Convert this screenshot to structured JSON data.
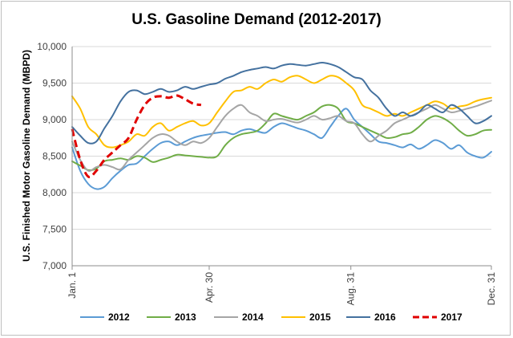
{
  "chart_data": {
    "type": "line",
    "title": "U.S. Gasoline Demand (2012-2017)",
    "ylabel": "U.S. Finished Motor Gasoline Demand (MBPD)",
    "xlabel": "",
    "ylim": [
      7000,
      10000
    ],
    "yticks": [
      "7,000",
      "7,500",
      "8,000",
      "8,500",
      "9,000",
      "9,500",
      "10,000"
    ],
    "x_tick_labels": [
      "Jan. 1",
      "Apr. 30",
      "Aug. 31",
      "Dec. 31"
    ],
    "x_tick_days": [
      0,
      119,
      242,
      364
    ],
    "grid": "horizontal",
    "legend_position": "bottom",
    "series": [
      {
        "name": "2012",
        "color": "#5b9bd5",
        "dash": false,
        "days": [
          0,
          7,
          14,
          21,
          28,
          35,
          42,
          49,
          56,
          63,
          70,
          77,
          84,
          91,
          98,
          105,
          112,
          119,
          126,
          133,
          140,
          147,
          154,
          161,
          168,
          175,
          182,
          189,
          196,
          203,
          210,
          217,
          224,
          231,
          238,
          245,
          252,
          259,
          266,
          273,
          280,
          287,
          294,
          301,
          308,
          315,
          322,
          329,
          336,
          343,
          350,
          357,
          364
        ],
        "values": [
          8620,
          8300,
          8120,
          8050,
          8080,
          8200,
          8300,
          8380,
          8400,
          8500,
          8600,
          8680,
          8700,
          8650,
          8700,
          8750,
          8780,
          8800,
          8820,
          8830,
          8800,
          8850,
          8870,
          8840,
          8820,
          8900,
          8950,
          8920,
          8880,
          8850,
          8800,
          8750,
          8900,
          9050,
          9150,
          9000,
          8900,
          8800,
          8700,
          8680,
          8650,
          8620,
          8660,
          8600,
          8650,
          8720,
          8680,
          8600,
          8650,
          8550,
          8500,
          8480,
          8560
        ]
      },
      {
        "name": "2013",
        "color": "#70ad47",
        "dash": false,
        "days": [
          0,
          7,
          14,
          21,
          28,
          35,
          42,
          49,
          56,
          63,
          70,
          77,
          84,
          91,
          98,
          105,
          112,
          119,
          126,
          133,
          140,
          147,
          154,
          161,
          168,
          175,
          182,
          189,
          196,
          203,
          210,
          217,
          224,
          231,
          238,
          245,
          252,
          259,
          266,
          273,
          280,
          287,
          294,
          301,
          308,
          315,
          322,
          329,
          336,
          343,
          350,
          357,
          364
        ],
        "values": [
          8430,
          8370,
          8310,
          8330,
          8430,
          8450,
          8470,
          8450,
          8500,
          8480,
          8420,
          8450,
          8480,
          8520,
          8510,
          8500,
          8490,
          8480,
          8500,
          8650,
          8750,
          8800,
          8820,
          8850,
          8950,
          9080,
          9050,
          9020,
          9000,
          9050,
          9100,
          9180,
          9200,
          9150,
          8980,
          8950,
          8900,
          8850,
          8800,
          8750,
          8760,
          8800,
          8820,
          8900,
          9000,
          9050,
          9020,
          8950,
          8850,
          8780,
          8800,
          8850,
          8860
        ]
      },
      {
        "name": "2014",
        "color": "#a5a5a5",
        "dash": false,
        "days": [
          0,
          7,
          14,
          21,
          28,
          35,
          42,
          49,
          56,
          63,
          70,
          77,
          84,
          91,
          98,
          105,
          112,
          119,
          126,
          133,
          140,
          147,
          154,
          161,
          168,
          175,
          182,
          189,
          196,
          203,
          210,
          217,
          224,
          231,
          238,
          245,
          252,
          259,
          266,
          273,
          280,
          287,
          294,
          301,
          308,
          315,
          322,
          329,
          336,
          343,
          350,
          357,
          364
        ],
        "values": [
          8700,
          8450,
          8300,
          8350,
          8380,
          8350,
          8320,
          8450,
          8550,
          8650,
          8750,
          8800,
          8780,
          8700,
          8650,
          8700,
          8680,
          8750,
          8900,
          9050,
          9150,
          9200,
          9100,
          9050,
          8980,
          9000,
          9010,
          8980,
          8960,
          9000,
          9050,
          9000,
          9020,
          9050,
          8980,
          8950,
          8800,
          8700,
          8780,
          8850,
          8950,
          9000,
          9050,
          9100,
          9150,
          9200,
          9150,
          9100,
          9120,
          9150,
          9180,
          9220,
          9260
        ]
      },
      {
        "name": "2015",
        "color": "#ffc000",
        "dash": false,
        "days": [
          0,
          7,
          14,
          21,
          28,
          35,
          42,
          49,
          56,
          63,
          70,
          77,
          84,
          91,
          98,
          105,
          112,
          119,
          126,
          133,
          140,
          147,
          154,
          161,
          168,
          175,
          182,
          189,
          196,
          203,
          210,
          217,
          224,
          231,
          238,
          245,
          252,
          259,
          266,
          273,
          280,
          287,
          294,
          301,
          308,
          315,
          322,
          329,
          336,
          343,
          350,
          357,
          364
        ],
        "values": [
          9320,
          9150,
          8900,
          8800,
          8650,
          8620,
          8650,
          8700,
          8800,
          8780,
          8900,
          8950,
          8850,
          8900,
          8950,
          8980,
          8920,
          8950,
          9100,
          9250,
          9380,
          9400,
          9450,
          9420,
          9500,
          9550,
          9520,
          9580,
          9600,
          9550,
          9500,
          9550,
          9600,
          9580,
          9500,
          9400,
          9200,
          9150,
          9100,
          9050,
          9080,
          9050,
          9100,
          9150,
          9200,
          9250,
          9220,
          9150,
          9180,
          9200,
          9250,
          9280,
          9300
        ]
      },
      {
        "name": "2016",
        "color": "#44719f",
        "dash": false,
        "days": [
          0,
          7,
          14,
          21,
          28,
          35,
          42,
          49,
          56,
          63,
          70,
          77,
          84,
          91,
          98,
          105,
          112,
          119,
          126,
          133,
          140,
          147,
          154,
          161,
          168,
          175,
          182,
          189,
          196,
          203,
          210,
          217,
          224,
          231,
          238,
          245,
          252,
          259,
          266,
          273,
          280,
          287,
          294,
          301,
          308,
          315,
          322,
          329,
          336,
          343,
          350,
          357,
          364
        ],
        "values": [
          8900,
          8780,
          8680,
          8700,
          8880,
          9050,
          9250,
          9380,
          9400,
          9350,
          9380,
          9420,
          9380,
          9400,
          9450,
          9420,
          9450,
          9480,
          9500,
          9560,
          9600,
          9650,
          9680,
          9700,
          9720,
          9700,
          9740,
          9760,
          9750,
          9740,
          9760,
          9780,
          9760,
          9720,
          9650,
          9580,
          9550,
          9400,
          9300,
          9150,
          9050,
          9100,
          9050,
          9100,
          9200,
          9150,
          9100,
          9200,
          9150,
          9050,
          8950,
          8980,
          9050
        ]
      },
      {
        "name": "2017",
        "color": "#e00000",
        "dash": true,
        "days": [
          0,
          7,
          14,
          21,
          28,
          35,
          42,
          49,
          56,
          63,
          70,
          77,
          84,
          91,
          98,
          105,
          112
        ],
        "values": [
          8870,
          8450,
          8220,
          8300,
          8450,
          8550,
          8650,
          8750,
          9000,
          9200,
          9300,
          9320,
          9300,
          9330,
          9280,
          9220,
          9200
        ]
      }
    ]
  }
}
